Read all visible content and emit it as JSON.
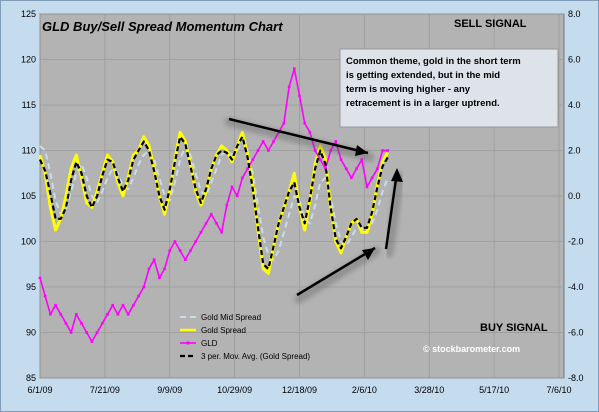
{
  "chart_data": {
    "type": "line",
    "title": "GLD Buy/Sell Spread Momentum Chart",
    "annotations": {
      "sell_signal": "SELL SIGNAL",
      "buy_signal": "BUY SIGNAL",
      "copyright": "© stockbarometer.com",
      "note": "Common theme, gold in the short term is getting extended, but in the mid term is moving higher - any retracement is in a larger uptrend."
    },
    "x_axis": {
      "ticks": [
        "6/1/09",
        "7/21/09",
        "9/9/09",
        "10/29/09",
        "12/18/09",
        "2/6/10",
        "3/28/10",
        "5/17/10",
        "7/6/10"
      ],
      "range_days": [
        0,
        400
      ]
    },
    "y_left": {
      "ticks": [
        85,
        90,
        95,
        100,
        105,
        110,
        115,
        120,
        125
      ],
      "range": [
        85,
        125
      ]
    },
    "y_right": {
      "ticks": [
        "-8.0",
        "-6.0",
        "-4.0",
        "-2.0",
        "0.0",
        "2.0",
        "4.0",
        "6.0",
        "8.0"
      ],
      "range": [
        -8,
        8
      ]
    },
    "legend": {
      "entries": [
        "Gold Mid Spread",
        "Gold  Spread",
        "GLD",
        "3 per. Mov. Avg. (Gold  Spread)"
      ],
      "placement": "bottom-left"
    },
    "colors": {
      "gold_mid_spread": "#c8dcea",
      "gold_spread": "#ffff00",
      "gld": "#ff00ff",
      "moving_avg": "#000000",
      "plot_bg": "#b3b3b3",
      "frame_bg": "#c5dcef"
    },
    "series": [
      {
        "name": "GLD",
        "axis": "left",
        "x": [
          0,
          4,
          8,
          12,
          16,
          20,
          24,
          28,
          32,
          36,
          40,
          44,
          48,
          52,
          56,
          60,
          64,
          68,
          72,
          76,
          80,
          84,
          88,
          92,
          96,
          100,
          104,
          108,
          112,
          116,
          120,
          124,
          128,
          132,
          136,
          140,
          144,
          148,
          152,
          156,
          160,
          164,
          168,
          172,
          176,
          180,
          184,
          188,
          192,
          196,
          200,
          204,
          208,
          212,
          216,
          220,
          224,
          228,
          232,
          236,
          240,
          244,
          248,
          252,
          256,
          260,
          264,
          268
        ],
        "values": [
          96,
          94,
          92,
          93,
          92,
          91,
          90,
          92,
          91,
          90,
          89,
          90,
          91,
          92,
          93,
          92,
          93,
          92,
          93,
          94,
          95,
          97,
          98,
          96,
          97,
          99,
          100,
          99,
          98,
          99,
          100,
          101,
          102,
          103,
          102,
          101,
          104,
          106,
          105,
          107,
          108,
          109,
          110,
          111,
          110,
          111,
          112,
          113,
          117,
          119,
          116,
          113,
          112,
          110,
          109,
          108,
          110,
          111,
          109,
          108,
          107,
          108,
          109,
          106,
          107,
          108,
          110,
          110
        ]
      },
      {
        "name": "Gold  Spread",
        "axis": "right",
        "x": [
          0,
          4,
          8,
          12,
          16,
          20,
          24,
          28,
          32,
          36,
          40,
          44,
          48,
          52,
          56,
          60,
          64,
          68,
          72,
          76,
          80,
          84,
          88,
          92,
          96,
          100,
          104,
          108,
          112,
          116,
          120,
          124,
          128,
          132,
          136,
          140,
          144,
          148,
          152,
          156,
          160,
          164,
          168,
          172,
          176,
          180,
          184,
          188,
          192,
          196,
          200,
          204,
          208,
          212,
          216,
          220,
          224,
          228,
          232,
          236,
          240,
          244,
          248,
          252,
          256,
          260,
          264,
          268
        ],
        "values": [
          1.8,
          1.0,
          -0.5,
          -1.5,
          -1.0,
          0.0,
          1.2,
          1.8,
          0.8,
          -0.3,
          -0.5,
          0.2,
          1.0,
          1.8,
          1.5,
          0.6,
          0.0,
          0.8,
          1.8,
          2.0,
          2.6,
          2.2,
          1.2,
          0.0,
          -0.8,
          0.2,
          1.6,
          2.8,
          2.4,
          1.4,
          0.2,
          -0.4,
          0.2,
          1.2,
          1.8,
          2.2,
          2.0,
          1.5,
          2.2,
          2.8,
          1.8,
          0.5,
          -1.5,
          -3.2,
          -3.4,
          -2.2,
          -1.2,
          -0.5,
          0.2,
          1.0,
          -0.5,
          -1.5,
          -0.2,
          1.4,
          2.2,
          1.6,
          -0.5,
          -2.0,
          -2.5,
          -1.8,
          -1.2,
          -1.0,
          -1.6,
          -1.6,
          -0.8,
          0.5,
          1.5,
          1.9
        ]
      },
      {
        "name": "Gold Mid Spread",
        "axis": "right",
        "x": [
          0,
          4,
          8,
          12,
          16,
          20,
          24,
          28,
          32,
          36,
          40,
          44,
          48,
          52,
          56,
          60,
          64,
          68,
          72,
          76,
          80,
          84,
          88,
          92,
          96,
          100,
          104,
          108,
          112,
          116,
          120,
          124,
          128,
          132,
          136,
          140,
          144,
          148,
          152,
          156,
          160,
          164,
          168,
          172,
          176,
          180,
          184,
          188,
          192,
          196,
          200,
          204,
          208,
          212,
          216,
          220,
          224,
          228,
          232,
          236,
          240,
          244,
          248,
          252,
          256,
          260,
          264,
          268
        ],
        "values": [
          2.2,
          2.0,
          1.0,
          -0.2,
          -0.8,
          -0.6,
          0.2,
          1.0,
          1.4,
          0.8,
          0.0,
          -0.3,
          0.2,
          0.8,
          1.2,
          1.0,
          0.4,
          0.3,
          0.8,
          1.4,
          1.8,
          2.0,
          1.6,
          0.8,
          0.0,
          -0.2,
          0.6,
          1.6,
          2.2,
          1.8,
          1.0,
          0.2,
          0.0,
          0.6,
          1.2,
          1.8,
          2.0,
          1.8,
          2.0,
          2.4,
          2.0,
          1.0,
          -0.4,
          -1.8,
          -2.6,
          -2.8,
          -2.4,
          -1.6,
          -0.8,
          0.0,
          -0.2,
          -1.0,
          -1.2,
          -0.4,
          0.6,
          0.8,
          0.0,
          -1.2,
          -2.0,
          -2.2,
          -1.8,
          -1.4,
          -1.4,
          -1.6,
          -1.2,
          -0.6,
          0.2,
          0.8
        ]
      },
      {
        "name": "3 per. Mov. Avg. (Gold  Spread)",
        "axis": "right",
        "x": [
          0,
          4,
          8,
          12,
          16,
          20,
          24,
          28,
          32,
          36,
          40,
          44,
          48,
          52,
          56,
          60,
          64,
          68,
          72,
          76,
          80,
          84,
          88,
          92,
          96,
          100,
          104,
          108,
          112,
          116,
          120,
          124,
          128,
          132,
          136,
          140,
          144,
          148,
          152,
          156,
          160,
          164,
          168,
          172,
          176,
          180,
          184,
          188,
          192,
          196,
          200,
          204,
          208,
          212,
          216,
          220,
          224,
          228,
          232,
          236,
          240,
          244,
          248,
          252,
          256,
          260,
          264,
          268
        ],
        "values": [
          1.6,
          1.1,
          0.1,
          -1.0,
          -1.0,
          -0.5,
          0.7,
          1.5,
          1.0,
          0.0,
          -0.5,
          0.0,
          0.9,
          1.6,
          1.5,
          0.8,
          0.2,
          0.7,
          1.6,
          2.0,
          2.4,
          2.0,
          1.1,
          0.0,
          -0.6,
          0.3,
          1.5,
          2.6,
          2.3,
          1.3,
          0.3,
          -0.3,
          0.3,
          1.2,
          1.8,
          2.0,
          1.9,
          1.6,
          2.2,
          2.6,
          1.7,
          0.3,
          -1.4,
          -3.0,
          -3.2,
          -2.2,
          -1.2,
          -0.5,
          0.2,
          0.6,
          -0.5,
          -1.2,
          -0.1,
          1.2,
          2.0,
          1.4,
          -0.5,
          -1.9,
          -2.3,
          -1.8,
          -1.2,
          -1.0,
          -1.4,
          -1.4,
          -0.7,
          0.4,
          1.3,
          1.7
        ]
      }
    ]
  }
}
